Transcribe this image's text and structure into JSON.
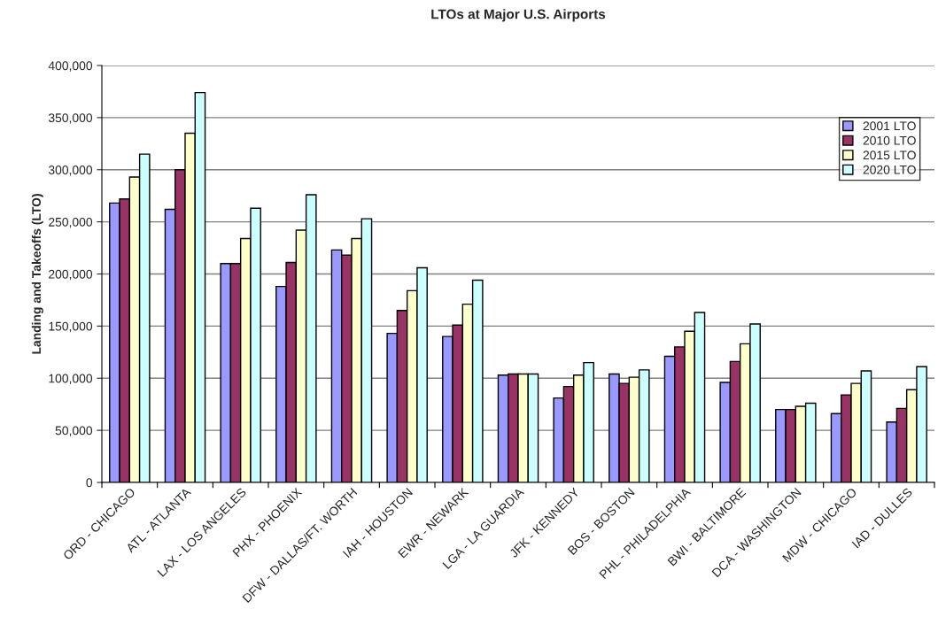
{
  "chart_data": {
    "type": "bar",
    "title": "LTOs at Major U.S. Airports",
    "ylabel": "Landing and Takeoffs (LTO)",
    "categories": [
      "ORD - CHICAGO",
      "ATL - ATLANTA",
      "LAX - LOS ANGELES",
      "PHX - PHOENIX",
      "DFW - DALLAS/FT. WORTH",
      "IAH - HOUSTON",
      "EWR - NEWARK",
      "LGA - LA GUARDIA",
      "JFK - KENNEDY",
      "BOS - BOSTON",
      "PHL - PHILADELPHIA",
      "BWI - BALTIMORE",
      "DCA - WASHINGTON",
      "MDW - CHICAGO",
      "IAD - DULLES"
    ],
    "series": [
      {
        "name": "2001 LTO",
        "color": "#9999ff",
        "values": [
          268000,
          262000,
          210000,
          188000,
          223000,
          143000,
          140000,
          103000,
          81000,
          104000,
          121000,
          96000,
          70000,
          66000,
          58000
        ]
      },
      {
        "name": "2010 LTO",
        "color": "#993366",
        "values": [
          272000,
          300000,
          210000,
          211000,
          218000,
          165000,
          151000,
          104000,
          92000,
          95000,
          130000,
          116000,
          70000,
          84000,
          71000
        ]
      },
      {
        "name": "2015 LTO",
        "color": "#ffffcc",
        "values": [
          293000,
          335000,
          234000,
          242000,
          234000,
          184000,
          171000,
          104000,
          103000,
          101000,
          145000,
          133000,
          73000,
          95000,
          89000
        ]
      },
      {
        "name": "2020 LTO",
        "color": "#ccffff",
        "values": [
          315000,
          374000,
          263000,
          276000,
          253000,
          206000,
          194000,
          104000,
          115000,
          108000,
          163000,
          152000,
          76000,
          107000,
          111000
        ]
      }
    ],
    "ylim": [
      0,
      400000
    ],
    "yticks": [
      {
        "value": 0,
        "label": "0"
      },
      {
        "value": 50000,
        "label": "50,000"
      },
      {
        "value": 100000,
        "label": "100,000"
      },
      {
        "value": 150000,
        "label": "150,000"
      },
      {
        "value": 200000,
        "label": "200,000"
      },
      {
        "value": 250000,
        "label": "250,000"
      },
      {
        "value": 300000,
        "label": "300,000"
      },
      {
        "value": 350000,
        "label": "350,000"
      },
      {
        "value": 400000,
        "label": "400,000"
      }
    ],
    "grid": "y",
    "legend": "top right"
  }
}
